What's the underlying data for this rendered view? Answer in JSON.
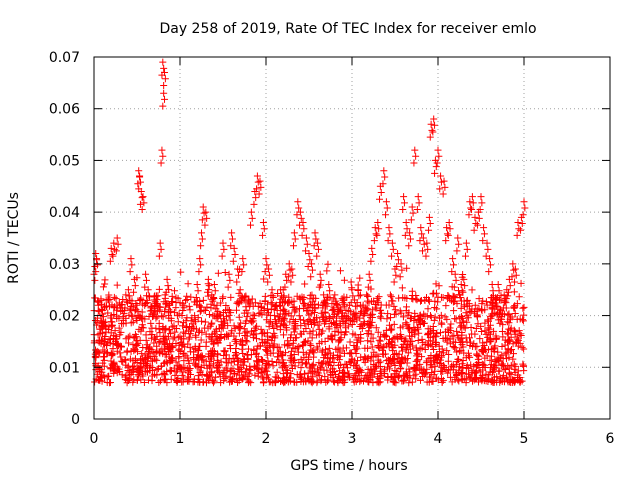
{
  "chart_data": {
    "type": "scatter",
    "title": "Day 258 of 2019, Rate Of TEC Index for receiver emlo",
    "xlabel": "GPS time / hours",
    "ylabel": "ROTI / TECUs",
    "xlim": [
      0,
      6
    ],
    "ylim": [
      0,
      0.07
    ],
    "xticks": [
      0,
      1,
      2,
      3,
      4,
      5,
      6
    ],
    "yticks": [
      0,
      0.01,
      0.02,
      0.03,
      0.04,
      0.05,
      0.06,
      0.07
    ],
    "xtick_labels": [
      "0",
      "1",
      "2",
      "3",
      "4",
      "5",
      "6"
    ],
    "ytick_labels": [
      "0",
      "0.01",
      "0.02",
      "0.03",
      "0.04",
      "0.05",
      "0.06",
      "0.07"
    ],
    "grid": true,
    "marker": "+",
    "marker_color": "#ff0000",
    "series": [
      {
        "name": "ROTI",
        "x": [
          0.0,
          0.02,
          0.03,
          0.05,
          0.08,
          0.1,
          0.13,
          0.17,
          0.2,
          0.23,
          0.27,
          0.3,
          0.33,
          0.37,
          0.4,
          0.43,
          0.47,
          0.5,
          0.52,
          0.53,
          0.55,
          0.57,
          0.6,
          0.63,
          0.67,
          0.7,
          0.73,
          0.77,
          0.79,
          0.8,
          0.81,
          0.82,
          0.85,
          0.88,
          0.9,
          0.93,
          0.97,
          1.0,
          1.03,
          1.07,
          1.1,
          1.13,
          1.17,
          1.2,
          1.23,
          1.25,
          1.27,
          1.3,
          1.33,
          1.37,
          1.4,
          1.43,
          1.47,
          1.5,
          1.53,
          1.57,
          1.6,
          1.63,
          1.67,
          1.7,
          1.73,
          1.77,
          1.8,
          1.83,
          1.87,
          1.9,
          1.93,
          1.97,
          2.0,
          2.03,
          2.07,
          2.1,
          2.13,
          2.17,
          2.2,
          2.23,
          2.27,
          2.3,
          2.33,
          2.37,
          2.4,
          2.43,
          2.47,
          2.5,
          2.53,
          2.57,
          2.6,
          2.63,
          2.67,
          2.7,
          2.73,
          2.77,
          2.8,
          2.83,
          2.87,
          2.9,
          2.93,
          2.97,
          3.0,
          3.03,
          3.07,
          3.1,
          3.13,
          3.17,
          3.2,
          3.23,
          3.27,
          3.3,
          3.33,
          3.37,
          3.4,
          3.43,
          3.47,
          3.5,
          3.53,
          3.57,
          3.6,
          3.63,
          3.67,
          3.7,
          3.73,
          3.77,
          3.8,
          3.83,
          3.87,
          3.9,
          3.92,
          3.95,
          3.97,
          4.0,
          4.03,
          4.07,
          4.1,
          4.13,
          4.17,
          4.2,
          4.23,
          4.27,
          4.3,
          4.33,
          4.37,
          4.4,
          4.43,
          4.47,
          4.5,
          4.53,
          4.57,
          4.6,
          4.63,
          4.67,
          4.7,
          4.73,
          4.77,
          4.8,
          4.83,
          4.87,
          4.9,
          4.93,
          4.97,
          5.0
        ],
        "y": [
          0.028,
          0.032,
          0.031,
          0.022,
          0.019,
          0.021,
          0.018,
          0.023,
          0.033,
          0.034,
          0.035,
          0.022,
          0.021,
          0.024,
          0.025,
          0.031,
          0.027,
          0.022,
          0.048,
          0.047,
          0.044,
          0.043,
          0.028,
          0.025,
          0.021,
          0.023,
          0.022,
          0.034,
          0.052,
          0.069,
          0.063,
          0.067,
          0.027,
          0.022,
          0.019,
          0.018,
          0.02,
          0.016,
          0.018,
          0.019,
          0.017,
          0.019,
          0.02,
          0.026,
          0.031,
          0.036,
          0.041,
          0.04,
          0.027,
          0.024,
          0.026,
          0.022,
          0.02,
          0.034,
          0.021,
          0.028,
          0.036,
          0.033,
          0.029,
          0.025,
          0.031,
          0.021,
          0.023,
          0.04,
          0.044,
          0.047,
          0.046,
          0.038,
          0.031,
          0.029,
          0.025,
          0.02,
          0.021,
          0.025,
          0.025,
          0.028,
          0.03,
          0.029,
          0.036,
          0.042,
          0.04,
          0.038,
          0.035,
          0.032,
          0.03,
          0.036,
          0.034,
          0.028,
          0.024,
          0.023,
          0.026,
          0.021,
          0.024,
          0.022,
          0.021,
          0.023,
          0.021,
          0.022,
          0.025,
          0.023,
          0.025,
          0.022,
          0.02,
          0.024,
          0.028,
          0.033,
          0.037,
          0.038,
          0.045,
          0.048,
          0.042,
          0.037,
          0.034,
          0.029,
          0.032,
          0.03,
          0.043,
          0.038,
          0.036,
          0.041,
          0.052,
          0.043,
          0.037,
          0.035,
          0.034,
          0.039,
          0.057,
          0.058,
          0.05,
          0.052,
          0.047,
          0.046,
          0.037,
          0.038,
          0.031,
          0.028,
          0.035,
          0.026,
          0.027,
          0.034,
          0.042,
          0.043,
          0.039,
          0.04,
          0.043,
          0.037,
          0.034,
          0.031,
          0.026,
          0.023,
          0.026,
          0.021,
          0.024,
          0.025,
          0.027,
          0.03,
          0.029,
          0.038,
          0.039,
          0.042
        ]
      }
    ],
    "dense_band": {
      "y_low": 0.007,
      "y_high": 0.024,
      "x_end": 5.0
    }
  }
}
